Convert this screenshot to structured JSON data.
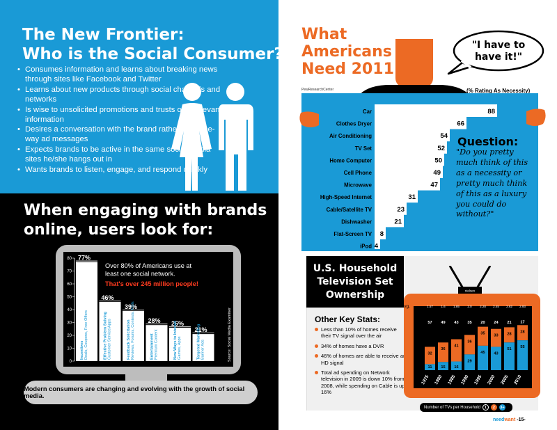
{
  "left": {
    "title_line1": "The New Frontier:",
    "title_line2": "Who is the Social Consumer?",
    "bullets": [
      "Consumes information and learns about breaking news through sites like Facebook and Twitter",
      "Learns about new products through social channels and networks",
      "Is wise to unsolicited promotions and trusts only relevant information",
      "Desires a conversation with the brand rather than one-way ad messages",
      "Expects brands to be active in the same social media sites he/she hangs out in",
      "Wants brands to listen, engage, and respond quickly"
    ],
    "engage_line1": "When engaging with brands",
    "engage_line2": "online, users look for:",
    "monitor_text": "Over 80% of Americans use at least one social network.",
    "monitor_highlight": "That's over 245 million people!",
    "source_vertical": "Source: Social Media Examiner",
    "caption": "Modern consumers are changing and evolving with the growth of social media.",
    "colors": {
      "blue": "#1a9ad6",
      "orange": "#ec6a24",
      "red": "#ff3b1f"
    }
  },
  "right": {
    "title_line1": "What",
    "title_line2": "Americans",
    "title_line3": "Need 2011",
    "bubble_line1": "\"I have to",
    "bubble_line2": "have it!\"",
    "source_small": "PewResearchCenter",
    "rating_label": "(% Rating As Necessity)",
    "question_title": "Question:",
    "question_text": "\"Do you pretty much think of this as a necessity or pretty much think of this as a luxury you could do without?\"",
    "tv_title": "U.S. Household Television Set Ownership",
    "key_stats_title": "Other Key Stats:",
    "key_stats": [
      "Less than 10% of homes receive their TV signal over the air",
      "34% of homes have a DVR",
      "46% of homes are able to receive an HD signal",
      "Total ad spending on Network television in 2009 is down 10% from 2008, while spending on Cable is up 16%"
    ],
    "tv_brand": "nielsen",
    "legend_label": "Number of TVs per Household",
    "legend_items": [
      "1",
      "2",
      "3+"
    ],
    "footer_need": "need",
    "footer_want": "want",
    "footer_page": "-15-"
  },
  "chart_data": [
    {
      "type": "bar",
      "title": "",
      "categories": [
        "Incentives (Deals, Coupons, Free Offers)",
        "Effective Problem Solving (Customer Service/Apps)",
        "Feedback Solicitation (Reviews, Forums, Contests, Polls)",
        "Entertainment (Premium Content)",
        "New Ways to Interact (Games, Apps)",
        "Targeted Marketing (Banner Ads)"
      ],
      "value_labels": [
        "77%",
        "46%",
        "39%",
        "28%",
        "26%",
        "21%"
      ],
      "values": [
        77,
        46,
        39,
        28,
        26,
        21
      ],
      "y_ticks": [
        "0",
        "10",
        "20",
        "30",
        "40",
        "50",
        "60",
        "70",
        "80"
      ],
      "ylim": [
        0,
        80
      ]
    },
    {
      "type": "bar",
      "orientation": "horizontal",
      "title": "",
      "categories": [
        "Car",
        "Clothes Dryer",
        "Air Conditioning",
        "TV Set",
        "Home Computer",
        "Cell Phone",
        "Microwave",
        "High-Speed Internet",
        "Cable/Satellite TV",
        "Dishwasher",
        "Flat-Screen TV",
        "iPod"
      ],
      "values": [
        88,
        66,
        54,
        52,
        50,
        49,
        47,
        31,
        23,
        21,
        8,
        4
      ],
      "xlim": [
        0,
        100
      ]
    },
    {
      "type": "bar",
      "stacked": true,
      "categories": [
        "1975",
        "1980",
        "1985",
        "1990",
        "1995",
        "2000",
        "2005",
        "2010"
      ],
      "avg_label": "Avg.",
      "avg": [
        "1.57",
        "1.6",
        "1.85",
        "2.0",
        "2.28",
        "2.45",
        "2.62",
        "2.93"
      ],
      "series": [
        {
          "name": "1",
          "values": [
            57,
            49,
            43,
            35,
            20,
            24,
            21,
            17
          ]
        },
        {
          "name": "2",
          "values": [
            32,
            36,
            41,
            36,
            35,
            33,
            28,
            28
          ]
        },
        {
          "name": "3+",
          "values": [
            11,
            15,
            16,
            29,
            45,
            43,
            51,
            55
          ]
        }
      ],
      "colors": [
        "#000000",
        "#ec6a24",
        "#1a9ad6"
      ]
    }
  ]
}
